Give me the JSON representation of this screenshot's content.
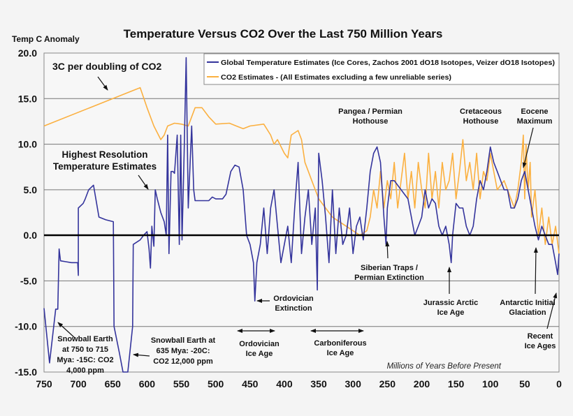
{
  "chart_data": {
    "type": "line",
    "title": "Temperature Versus CO2 Over the Last 750 Million Years",
    "ylabel": "Temp C Anomaly",
    "xlabel": "Millions of Years Before Present",
    "xlim": [
      750,
      0
    ],
    "ylim": [
      -15,
      20
    ],
    "x_ticks": [
      "750",
      "700",
      "650",
      "600",
      "550",
      "500",
      "450",
      "400",
      "350",
      "300",
      "250",
      "200",
      "150",
      "100",
      "50",
      "0"
    ],
    "y_ticks": [
      "20.0",
      "15.0",
      "10.0",
      "5.0",
      "0.0",
      "-5.0",
      "-10.0",
      "-15.0"
    ],
    "grid": "horizontal",
    "legend": "top-right",
    "series": [
      {
        "name": "Global Temperature Estimates (Ice Cores, Zachos 2001 dO18 Isotopes, Veizer dO18 Isotopes)",
        "color": "#34349c",
        "points": [
          [
            750,
            -8
          ],
          [
            742,
            -14
          ],
          [
            733,
            -8.1
          ],
          [
            730,
            -8.1
          ],
          [
            728,
            -1.5
          ],
          [
            726,
            -2.8
          ],
          [
            718,
            -2.9
          ],
          [
            710,
            -3
          ],
          [
            701,
            -3
          ],
          [
            700,
            -4.4
          ],
          [
            700,
            3
          ],
          [
            693,
            3.5
          ],
          [
            690,
            4
          ],
          [
            685,
            5
          ],
          [
            678,
            5.5
          ],
          [
            670,
            2
          ],
          [
            660,
            1.7
          ],
          [
            649,
            1.5
          ],
          [
            648,
            -10
          ],
          [
            640,
            -13
          ],
          [
            635,
            -15
          ],
          [
            628,
            -15
          ],
          [
            621,
            -10
          ],
          [
            620,
            -1
          ],
          [
            610,
            -0.5
          ],
          [
            605,
            0
          ],
          [
            600,
            0.4
          ],
          [
            597,
            -1.5
          ],
          [
            595,
            -3.6
          ],
          [
            593,
            1
          ],
          [
            590,
            -1.2
          ],
          [
            588,
            5
          ],
          [
            585,
            4
          ],
          [
            580,
            2.5
          ],
          [
            575,
            1.5
          ],
          [
            572,
            0
          ],
          [
            570,
            11
          ],
          [
            568,
            -2
          ],
          [
            565,
            7
          ],
          [
            562,
            7
          ],
          [
            560,
            6.8
          ],
          [
            556,
            11
          ],
          [
            553,
            -1
          ],
          [
            551,
            11
          ],
          [
            549,
            -0.5
          ],
          [
            546,
            9
          ],
          [
            543,
            19.5
          ],
          [
            540,
            3
          ],
          [
            535,
            12
          ],
          [
            532,
            5
          ],
          [
            530,
            3.8
          ],
          [
            510,
            3.8
          ],
          [
            505,
            4.2
          ],
          [
            500,
            4
          ],
          [
            490,
            4
          ],
          [
            485,
            4.5
          ],
          [
            478,
            7
          ],
          [
            472,
            7.7
          ],
          [
            466,
            7.5
          ],
          [
            460,
            5
          ],
          [
            455,
            0
          ],
          [
            450,
            -1
          ],
          [
            445,
            -3
          ],
          [
            443,
            -7.2
          ],
          [
            440,
            -3
          ],
          [
            435,
            -1
          ],
          [
            430,
            3
          ],
          [
            425,
            -2
          ],
          [
            420,
            3
          ],
          [
            415,
            5
          ],
          [
            410,
            1
          ],
          [
            405,
            -3
          ],
          [
            400,
            -1
          ],
          [
            395,
            1
          ],
          [
            390,
            -3
          ],
          [
            385,
            3
          ],
          [
            380,
            8
          ],
          [
            375,
            -2
          ],
          [
            370,
            2
          ],
          [
            365,
            5
          ],
          [
            360,
            -1
          ],
          [
            355,
            3
          ],
          [
            352,
            -6
          ],
          [
            350,
            9
          ],
          [
            345,
            6
          ],
          [
            340,
            2
          ],
          [
            335,
            -3
          ],
          [
            330,
            5
          ],
          [
            325,
            -2
          ],
          [
            320,
            3
          ],
          [
            315,
            -1
          ],
          [
            310,
            0
          ],
          [
            305,
            3
          ],
          [
            300,
            -2
          ],
          [
            295,
            1
          ],
          [
            290,
            2
          ],
          [
            285,
            -0.5
          ],
          [
            280,
            3
          ],
          [
            275,
            7
          ],
          [
            270,
            9
          ],
          [
            265,
            9.7
          ],
          [
            260,
            8
          ],
          [
            255,
            2
          ],
          [
            252,
            -1
          ],
          [
            250,
            3
          ],
          [
            245,
            6
          ],
          [
            240,
            6
          ],
          [
            230,
            5
          ],
          [
            220,
            4
          ],
          [
            215,
            2
          ],
          [
            210,
            0
          ],
          [
            205,
            1
          ],
          [
            200,
            2
          ],
          [
            195,
            5
          ],
          [
            190,
            3
          ],
          [
            185,
            4
          ],
          [
            180,
            3.5
          ],
          [
            175,
            1
          ],
          [
            170,
            0
          ],
          [
            165,
            1
          ],
          [
            160,
            -1
          ],
          [
            157,
            -3
          ],
          [
            155,
            0
          ],
          [
            150,
            3.5
          ],
          [
            145,
            3
          ],
          [
            140,
            3
          ],
          [
            135,
            1
          ],
          [
            130,
            0
          ],
          [
            125,
            1
          ],
          [
            120,
            4
          ],
          [
            115,
            6
          ],
          [
            110,
            5
          ],
          [
            105,
            7
          ],
          [
            100,
            9.7
          ],
          [
            95,
            8
          ],
          [
            90,
            7
          ],
          [
            85,
            6
          ],
          [
            80,
            5
          ],
          [
            75,
            5
          ],
          [
            70,
            3
          ],
          [
            65,
            3
          ],
          [
            60,
            4
          ],
          [
            55,
            6
          ],
          [
            50,
            7
          ],
          [
            45,
            5
          ],
          [
            40,
            3
          ],
          [
            35,
            1
          ],
          [
            30,
            -0.5
          ],
          [
            25,
            1
          ],
          [
            20,
            0
          ],
          [
            15,
            -1
          ],
          [
            10,
            -1
          ],
          [
            5,
            -3
          ],
          [
            2,
            -4.3
          ],
          [
            0,
            -2
          ]
        ]
      },
      {
        "name": "CO2 Estimates - (All Estimates excluding a few unreliable series)",
        "color": "#fbb040",
        "points": [
          [
            750,
            12
          ],
          [
            610,
            16.2
          ],
          [
            600,
            14
          ],
          [
            590,
            12
          ],
          [
            580,
            10.5
          ],
          [
            575,
            11
          ],
          [
            570,
            12
          ],
          [
            560,
            12.3
          ],
          [
            550,
            12.2
          ],
          [
            540,
            12
          ],
          [
            530,
            14
          ],
          [
            520,
            14
          ],
          [
            510,
            13
          ],
          [
            500,
            12.2
          ],
          [
            480,
            12.3
          ],
          [
            470,
            12
          ],
          [
            460,
            11.7
          ],
          [
            450,
            12
          ],
          [
            430,
            12.2
          ],
          [
            420,
            11
          ],
          [
            415,
            10
          ],
          [
            410,
            10.5
          ],
          [
            400,
            9
          ],
          [
            395,
            8.5
          ],
          [
            390,
            11
          ],
          [
            380,
            11.5
          ],
          [
            375,
            10.5
          ],
          [
            370,
            8
          ],
          [
            365,
            7
          ],
          [
            360,
            6
          ],
          [
            350,
            4
          ],
          [
            340,
            3
          ],
          [
            330,
            2
          ],
          [
            320,
            1.5
          ],
          [
            310,
            1
          ],
          [
            300,
            0.5
          ],
          [
            290,
            0
          ],
          [
            280,
            0.5
          ],
          [
            275,
            2
          ],
          [
            270,
            5
          ],
          [
            265,
            3
          ],
          [
            260,
            7
          ],
          [
            255,
            3
          ],
          [
            250,
            6
          ],
          [
            245,
            4
          ],
          [
            240,
            8
          ],
          [
            235,
            3
          ],
          [
            230,
            6
          ],
          [
            225,
            9
          ],
          [
            220,
            4
          ],
          [
            215,
            7
          ],
          [
            210,
            3
          ],
          [
            205,
            8
          ],
          [
            200,
            5
          ],
          [
            195,
            3
          ],
          [
            190,
            9
          ],
          [
            185,
            4
          ],
          [
            180,
            7
          ],
          [
            175,
            3
          ],
          [
            170,
            8
          ],
          [
            165,
            5
          ],
          [
            160,
            6
          ],
          [
            155,
            9
          ],
          [
            150,
            4
          ],
          [
            145,
            7
          ],
          [
            140,
            10.5
          ],
          [
            135,
            6
          ],
          [
            130,
            8
          ],
          [
            125,
            5
          ],
          [
            120,
            9
          ],
          [
            115,
            4
          ],
          [
            110,
            7
          ],
          [
            105,
            6
          ],
          [
            100,
            9
          ],
          [
            95,
            7
          ],
          [
            90,
            5
          ],
          [
            80,
            6
          ],
          [
            70,
            4
          ],
          [
            65,
            3
          ],
          [
            60,
            5
          ],
          [
            55,
            8
          ],
          [
            52,
            11
          ],
          [
            50,
            4
          ],
          [
            48,
            10
          ],
          [
            45,
            5
          ],
          [
            42,
            8
          ],
          [
            40,
            2
          ],
          [
            35,
            5
          ],
          [
            30,
            0
          ],
          [
            25,
            3
          ],
          [
            20,
            -1
          ],
          [
            15,
            2
          ],
          [
            10,
            -1
          ],
          [
            5,
            1
          ],
          [
            0,
            -2
          ]
        ]
      }
    ],
    "annotations": [
      {
        "id": "co2-sensitivity",
        "lines": [
          "3C per doubling of CO2"
        ]
      },
      {
        "id": "highest-resolution",
        "lines": [
          "Highest Resolution",
          "Temperature Estimates"
        ]
      },
      {
        "id": "pangea",
        "lines": [
          "Pangea / Permian",
          "Hothouse"
        ]
      },
      {
        "id": "cretaceous",
        "lines": [
          "Cretaceous",
          "Hothouse"
        ]
      },
      {
        "id": "eocene",
        "lines": [
          "Eocene",
          "Maximum"
        ]
      },
      {
        "id": "siberian-traps",
        "lines": [
          "Siberian Traps /",
          "Permian Extinction"
        ]
      },
      {
        "id": "ordovician-extinction",
        "lines": [
          "Ordovician",
          "Extinction"
        ]
      },
      {
        "id": "jurassic",
        "lines": [
          "Jurassic Arctic",
          "Ice Age"
        ]
      },
      {
        "id": "antarctic",
        "lines": [
          "Antarctic Initial",
          "Glaciation"
        ]
      },
      {
        "id": "recent-ice-ages",
        "lines": [
          "Recent",
          "Ice Ages"
        ]
      },
      {
        "id": "snowball-750",
        "lines": [
          "Snowball Earth",
          "at 750 to 715",
          "Mya: -15C: CO2",
          "4,000 ppm"
        ]
      },
      {
        "id": "snowball-635",
        "lines": [
          "Snowball Earth at",
          "635 Mya: -20C:",
          "CO2 12,000 ppm"
        ]
      },
      {
        "id": "ordovician-ice-age",
        "lines": [
          "Ordovician",
          "Ice Age"
        ]
      },
      {
        "id": "carboniferous-ice-age",
        "lines": [
          "Carboniferous",
          "Ice Age"
        ]
      }
    ]
  }
}
